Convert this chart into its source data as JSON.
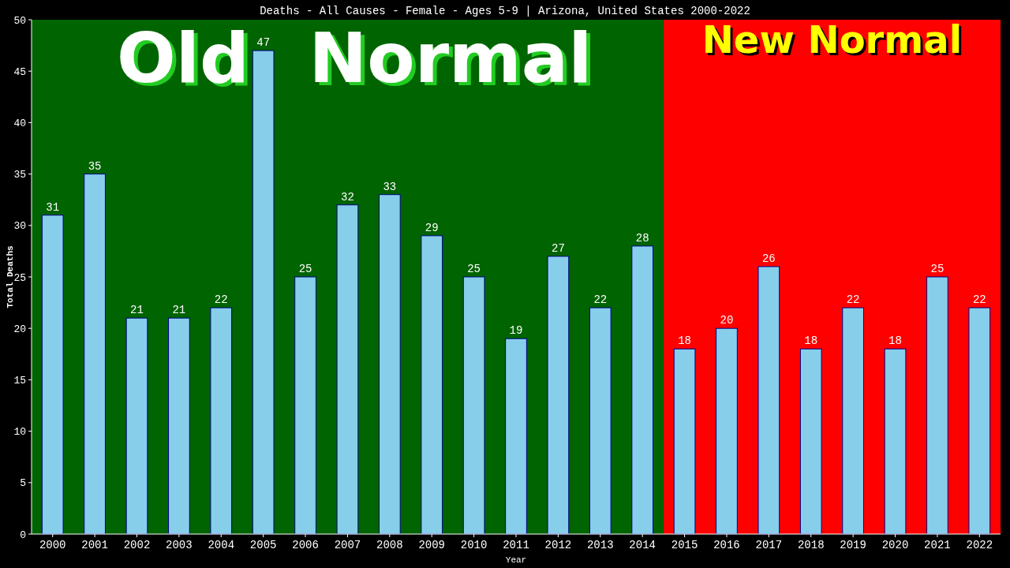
{
  "chart_data": {
    "type": "bar",
    "title": "Deaths - All Causes - Female - Ages 5-9 | Arizona, United States 2000-2022",
    "xlabel": "Year",
    "ylabel": "Total Deaths",
    "categories": [
      "2000",
      "2001",
      "2002",
      "2003",
      "2004",
      "2005",
      "2006",
      "2007",
      "2008",
      "2009",
      "2010",
      "2011",
      "2012",
      "2013",
      "2014",
      "2015",
      "2016",
      "2017",
      "2018",
      "2019",
      "2020",
      "2021",
      "2022"
    ],
    "values": [
      31,
      35,
      21,
      21,
      22,
      47,
      25,
      32,
      33,
      29,
      25,
      19,
      27,
      22,
      28,
      18,
      20,
      26,
      18,
      22,
      18,
      25,
      22
    ],
    "color": "#87ceeb",
    "data_labels": true,
    "grid": false,
    "ylim": [
      0,
      50
    ],
    "yticks": [
      0,
      5,
      10,
      15,
      20,
      25,
      30,
      35,
      40,
      45,
      50
    ],
    "bands": [
      {
        "axis": "x",
        "from": "2000",
        "to": "2014",
        "label": "Old Normal",
        "color": "#006400"
      },
      {
        "axis": "x",
        "from": "2015",
        "to": "2022",
        "label": "New Normal",
        "color": "#ff0000"
      }
    ]
  }
}
